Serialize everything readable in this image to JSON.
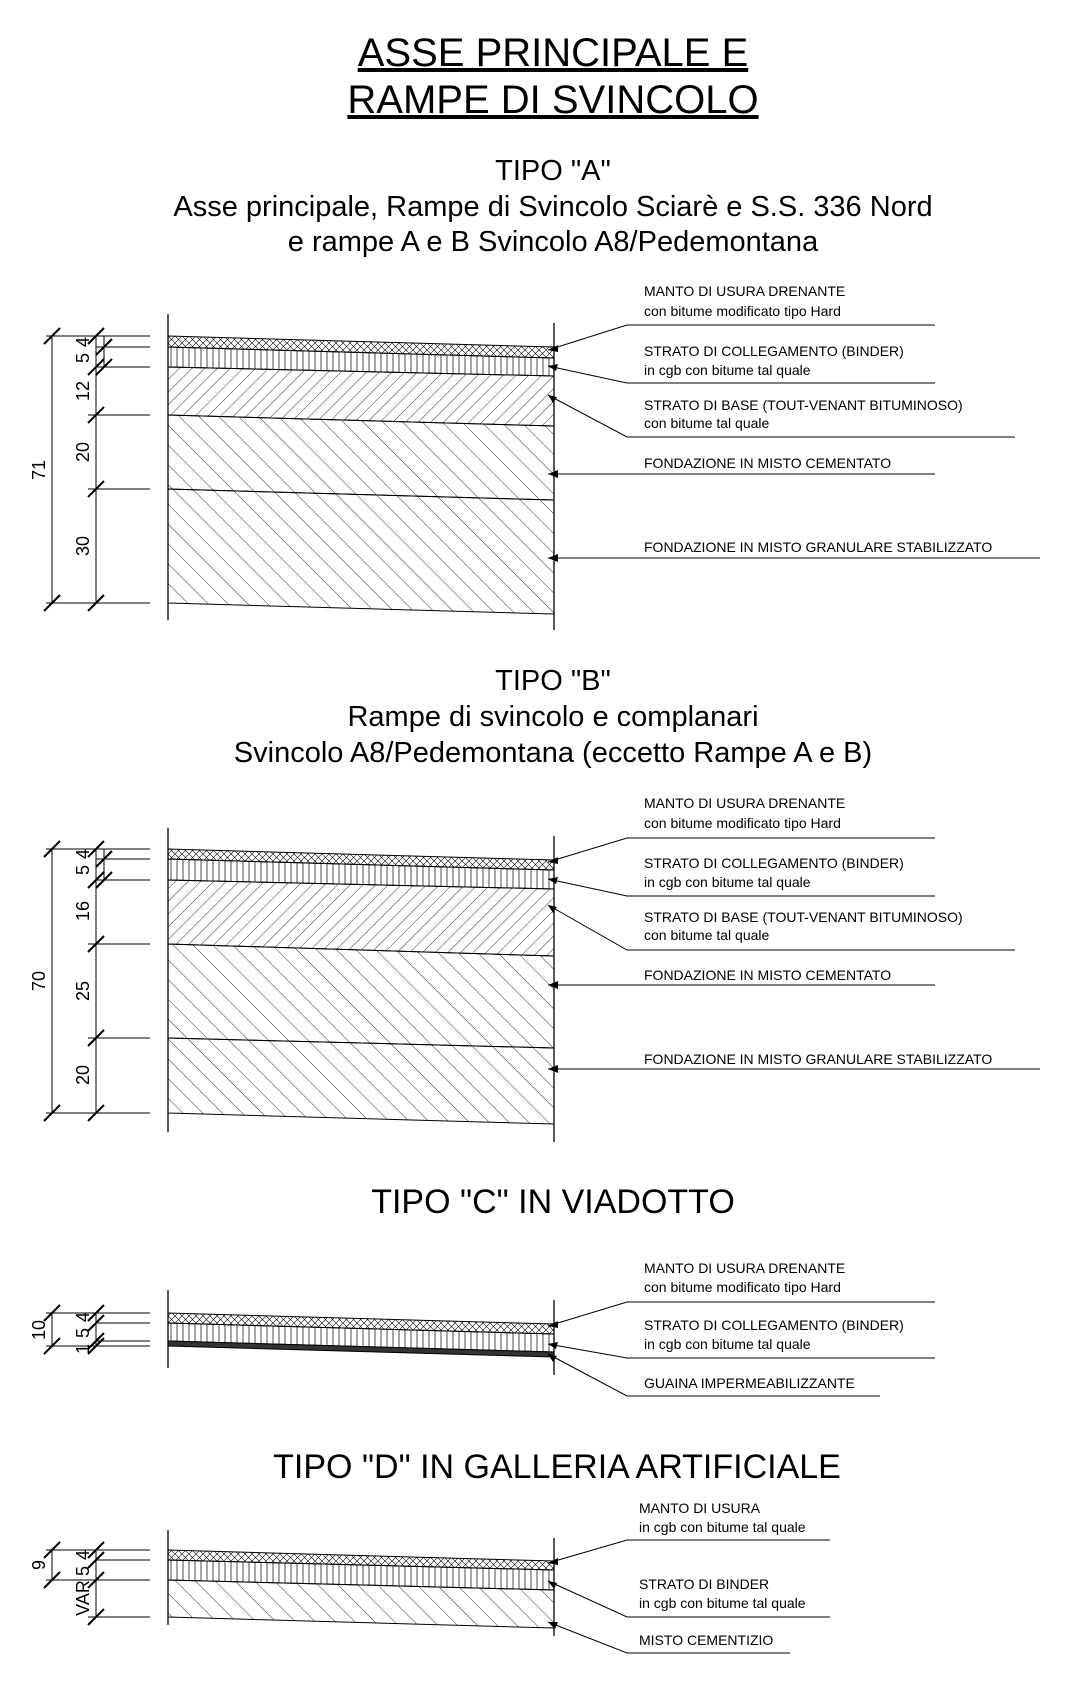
{
  "header": {
    "title_line1": "ASSE PRINCIPALE E",
    "title_line2": "RAMPE DI SVINCOLO"
  },
  "sections": [
    {
      "id": "A",
      "title": "TIPO \"A\"",
      "desc1": "Asse principale, Rampe di Svincolo Sciarè e S.S. 336 Nord",
      "desc2": "e rampe A e B Svincolo A8/Pedemontana",
      "total": "71",
      "dims": [
        "5",
        "4",
        "12",
        "20",
        "30"
      ],
      "layers": [
        {
          "name": "MANTO DI USURA DRENANTE",
          "sub": "con bitume modificato tipo Hard"
        },
        {
          "name": "STRATO DI COLLEGAMENTO (BINDER)",
          "sub": "in cgb con bitume tal quale"
        },
        {
          "name": "STRATO DI BASE (TOUT-VENANT BITUMINOSO)",
          "sub": "con bitume tal quale"
        },
        {
          "name": "FONDAZIONE IN MISTO CEMENTATO",
          "sub": ""
        },
        {
          "name": "FONDAZIONE IN MISTO GRANULARE STABILIZZATO",
          "sub": ""
        }
      ]
    },
    {
      "id": "B",
      "title": "TIPO \"B\"",
      "desc1": "Rampe di svincolo e complanari",
      "desc2": "Svincolo A8/Pedemontana (eccetto Rampe A e B)",
      "total": "70",
      "dims": [
        "5",
        "4",
        "16",
        "25",
        "20"
      ],
      "layers": [
        {
          "name": "MANTO DI USURA DRENANTE",
          "sub": "con bitume modificato tipo Hard"
        },
        {
          "name": "STRATO DI COLLEGAMENTO (BINDER)",
          "sub": "in cgb con bitume tal quale"
        },
        {
          "name": "STRATO DI BASE (TOUT-VENANT BITUMINOSO)",
          "sub": "con bitume tal quale"
        },
        {
          "name": "FONDAZIONE IN MISTO CEMENTATO",
          "sub": ""
        },
        {
          "name": "FONDAZIONE IN MISTO GRANULARE STABILIZZATO",
          "sub": ""
        }
      ]
    },
    {
      "id": "C",
      "title": "TIPO \"C\" IN VIADOTTO",
      "total": "10",
      "dims": [
        "5",
        "4",
        "1"
      ],
      "layers": [
        {
          "name": "MANTO DI USURA DRENANTE",
          "sub": "con bitume modificato tipo Hard"
        },
        {
          "name": "STRATO DI COLLEGAMENTO (BINDER)",
          "sub": "in cgb con bitume tal quale"
        },
        {
          "name": "GUAINA IMPERMEABILIZZANTE",
          "sub": ""
        }
      ]
    },
    {
      "id": "D",
      "title": "TIPO \"D\" IN GALLERIA ARTIFICIALE",
      "total": "9",
      "dims": [
        "5",
        "4",
        "VAR"
      ],
      "layers": [
        {
          "name": "MANTO DI USURA",
          "sub": "in cgb con bitume tal quale"
        },
        {
          "name": "STRATO DI BINDER",
          "sub": "in cgb con bitume tal quale"
        },
        {
          "name": "MISTO CEMENTIZIO",
          "sub": ""
        }
      ]
    }
  ]
}
